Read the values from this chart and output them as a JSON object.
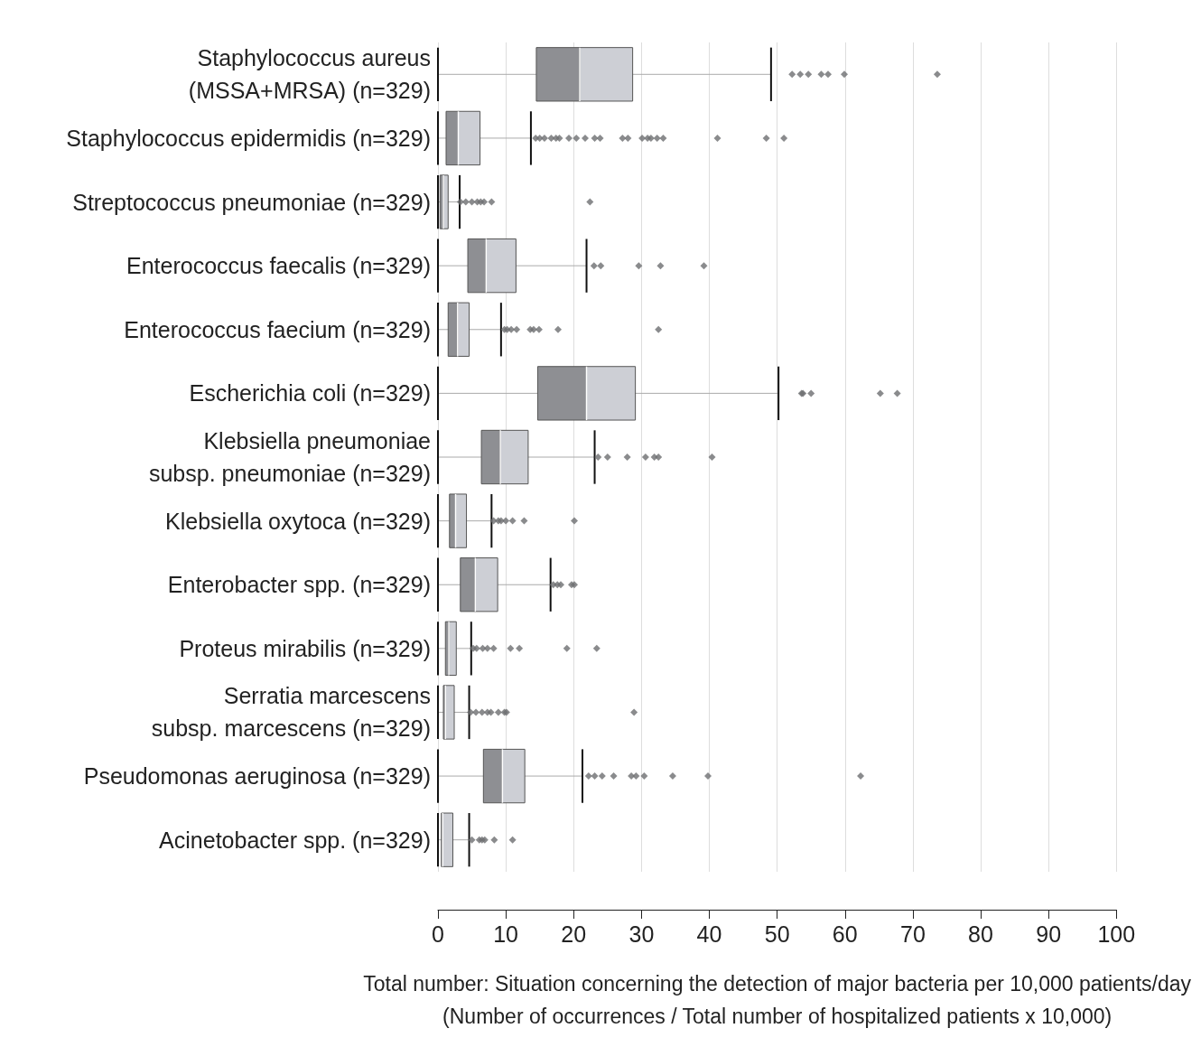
{
  "chart_data": {
    "type": "box",
    "orientation": "horizontal",
    "categories": [
      "Staphylococcus aureus\n(MSSA+MRSA) (n=329)",
      "Staphylococcus epidermidis (n=329)",
      "Streptococcus pneumoniae (n=329)",
      "Enterococcus faecalis (n=329)",
      "Enterococcus faecium (n=329)",
      "Escherichia coli (n=329)",
      "Klebsiella pneumoniae\nsubsp. pneumoniae (n=329)",
      "Klebsiella oxytoca (n=329)",
      "Enterobacter spp. (n=329)",
      "Proteus mirabilis (n=329)",
      "Serratia marcescens\nsubsp. marcescens (n=329)",
      "Pseudomonas aeruginosa (n=329)",
      "Acinetobacter spp. (n=329)"
    ],
    "series": [
      {
        "color": "#8e8f93",
        "boxes": [
          {
            "low": 0,
            "q1": 14.5,
            "median": 20.9,
            "q3": 28.7,
            "high": 49.1,
            "outliers": [
              52.2,
              53.4,
              54.6,
              56.5,
              57.5,
              59.9,
              73.6
            ]
          },
          {
            "low": 0,
            "q1": 1.2,
            "median": 3.0,
            "q3": 6.2,
            "high": 13.7,
            "outliers": [
              14.4,
              15.0,
              15.7,
              16.7,
              17.4,
              17.9,
              19.3,
              20.4,
              21.7,
              23.1,
              23.9,
              27.2,
              28.0,
              30.1,
              30.9,
              31.4,
              32.3,
              33.2,
              41.2,
              48.4,
              51.0
            ]
          },
          {
            "low": 0,
            "q1": 0.3,
            "median": 0.8,
            "q3": 1.5,
            "high": 3.2,
            "outliers": [
              3.3,
              4.1,
              5.0,
              5.8,
              6.3,
              6.8,
              7.9,
              22.4
            ]
          },
          {
            "low": 0,
            "q1": 4.4,
            "median": 7.1,
            "q3": 11.5,
            "high": 21.9,
            "outliers": [
              23.0,
              24.0,
              29.6,
              32.8,
              39.2
            ]
          },
          {
            "low": 0,
            "q1": 1.5,
            "median": 2.9,
            "q3": 4.6,
            "high": 9.3,
            "outliers": [
              9.8,
              10.2,
              10.8,
              11.6,
              13.6,
              14.1,
              14.9,
              17.7,
              32.5
            ]
          },
          {
            "low": 0,
            "q1": 14.7,
            "median": 21.9,
            "q3": 29.1,
            "high": 50.2,
            "outliers": [
              53.6,
              53.8,
              55.0,
              65.2,
              67.7
            ]
          },
          {
            "low": 0,
            "q1": 6.4,
            "median": 9.2,
            "q3": 13.3,
            "high": 23.1,
            "outliers": [
              23.6,
              25.0,
              27.9,
              30.6,
              31.9,
              32.5,
              40.4
            ]
          },
          {
            "low": 0,
            "q1": 1.7,
            "median": 2.6,
            "q3": 4.2,
            "high": 7.9,
            "outliers": [
              8.2,
              8.9,
              9.3,
              10.0,
              11.0,
              12.7,
              20.1
            ]
          },
          {
            "low": 0,
            "q1": 3.3,
            "median": 5.5,
            "q3": 8.8,
            "high": 16.6,
            "outliers": [
              17.0,
              17.6,
              18.1,
              19.7,
              20.1
            ]
          },
          {
            "low": 0,
            "q1": 1.1,
            "median": 1.6,
            "q3": 2.7,
            "high": 4.9,
            "outliers": [
              5.2,
              5.7,
              6.6,
              7.3,
              8.2,
              10.7,
              12.0,
              19.0,
              23.4
            ]
          },
          {
            "low": 0,
            "q1": 0.8,
            "median": 1.1,
            "q3": 2.4,
            "high": 4.6,
            "outliers": [
              4.8,
              5.6,
              6.5,
              7.3,
              7.8,
              8.9,
              9.8,
              10.1,
              28.9
            ]
          },
          {
            "low": 0,
            "q1": 6.7,
            "median": 9.5,
            "q3": 12.8,
            "high": 21.3,
            "outliers": [
              22.2,
              23.1,
              24.2,
              25.9,
              28.5,
              29.2,
              30.4,
              34.6,
              39.8,
              62.3
            ]
          },
          {
            "low": 0,
            "q1": 0.5,
            "median": 0.7,
            "q3": 2.2,
            "high": 4.6,
            "outliers": [
              5.0,
              6.1,
              6.5,
              6.9,
              8.3,
              11.0
            ]
          }
        ]
      }
    ],
    "xlim": [
      0,
      100
    ],
    "xticks": [
      0,
      10,
      20,
      30,
      40,
      50,
      60,
      70,
      80,
      90,
      100
    ],
    "grid": "x",
    "marker": "diamond",
    "xlabel": "Total number: Situation concerning the detection of major bacteria per 10,000 patients/day\n(Number of occurrences / Total number of hospitalized patients x 10,000)"
  }
}
